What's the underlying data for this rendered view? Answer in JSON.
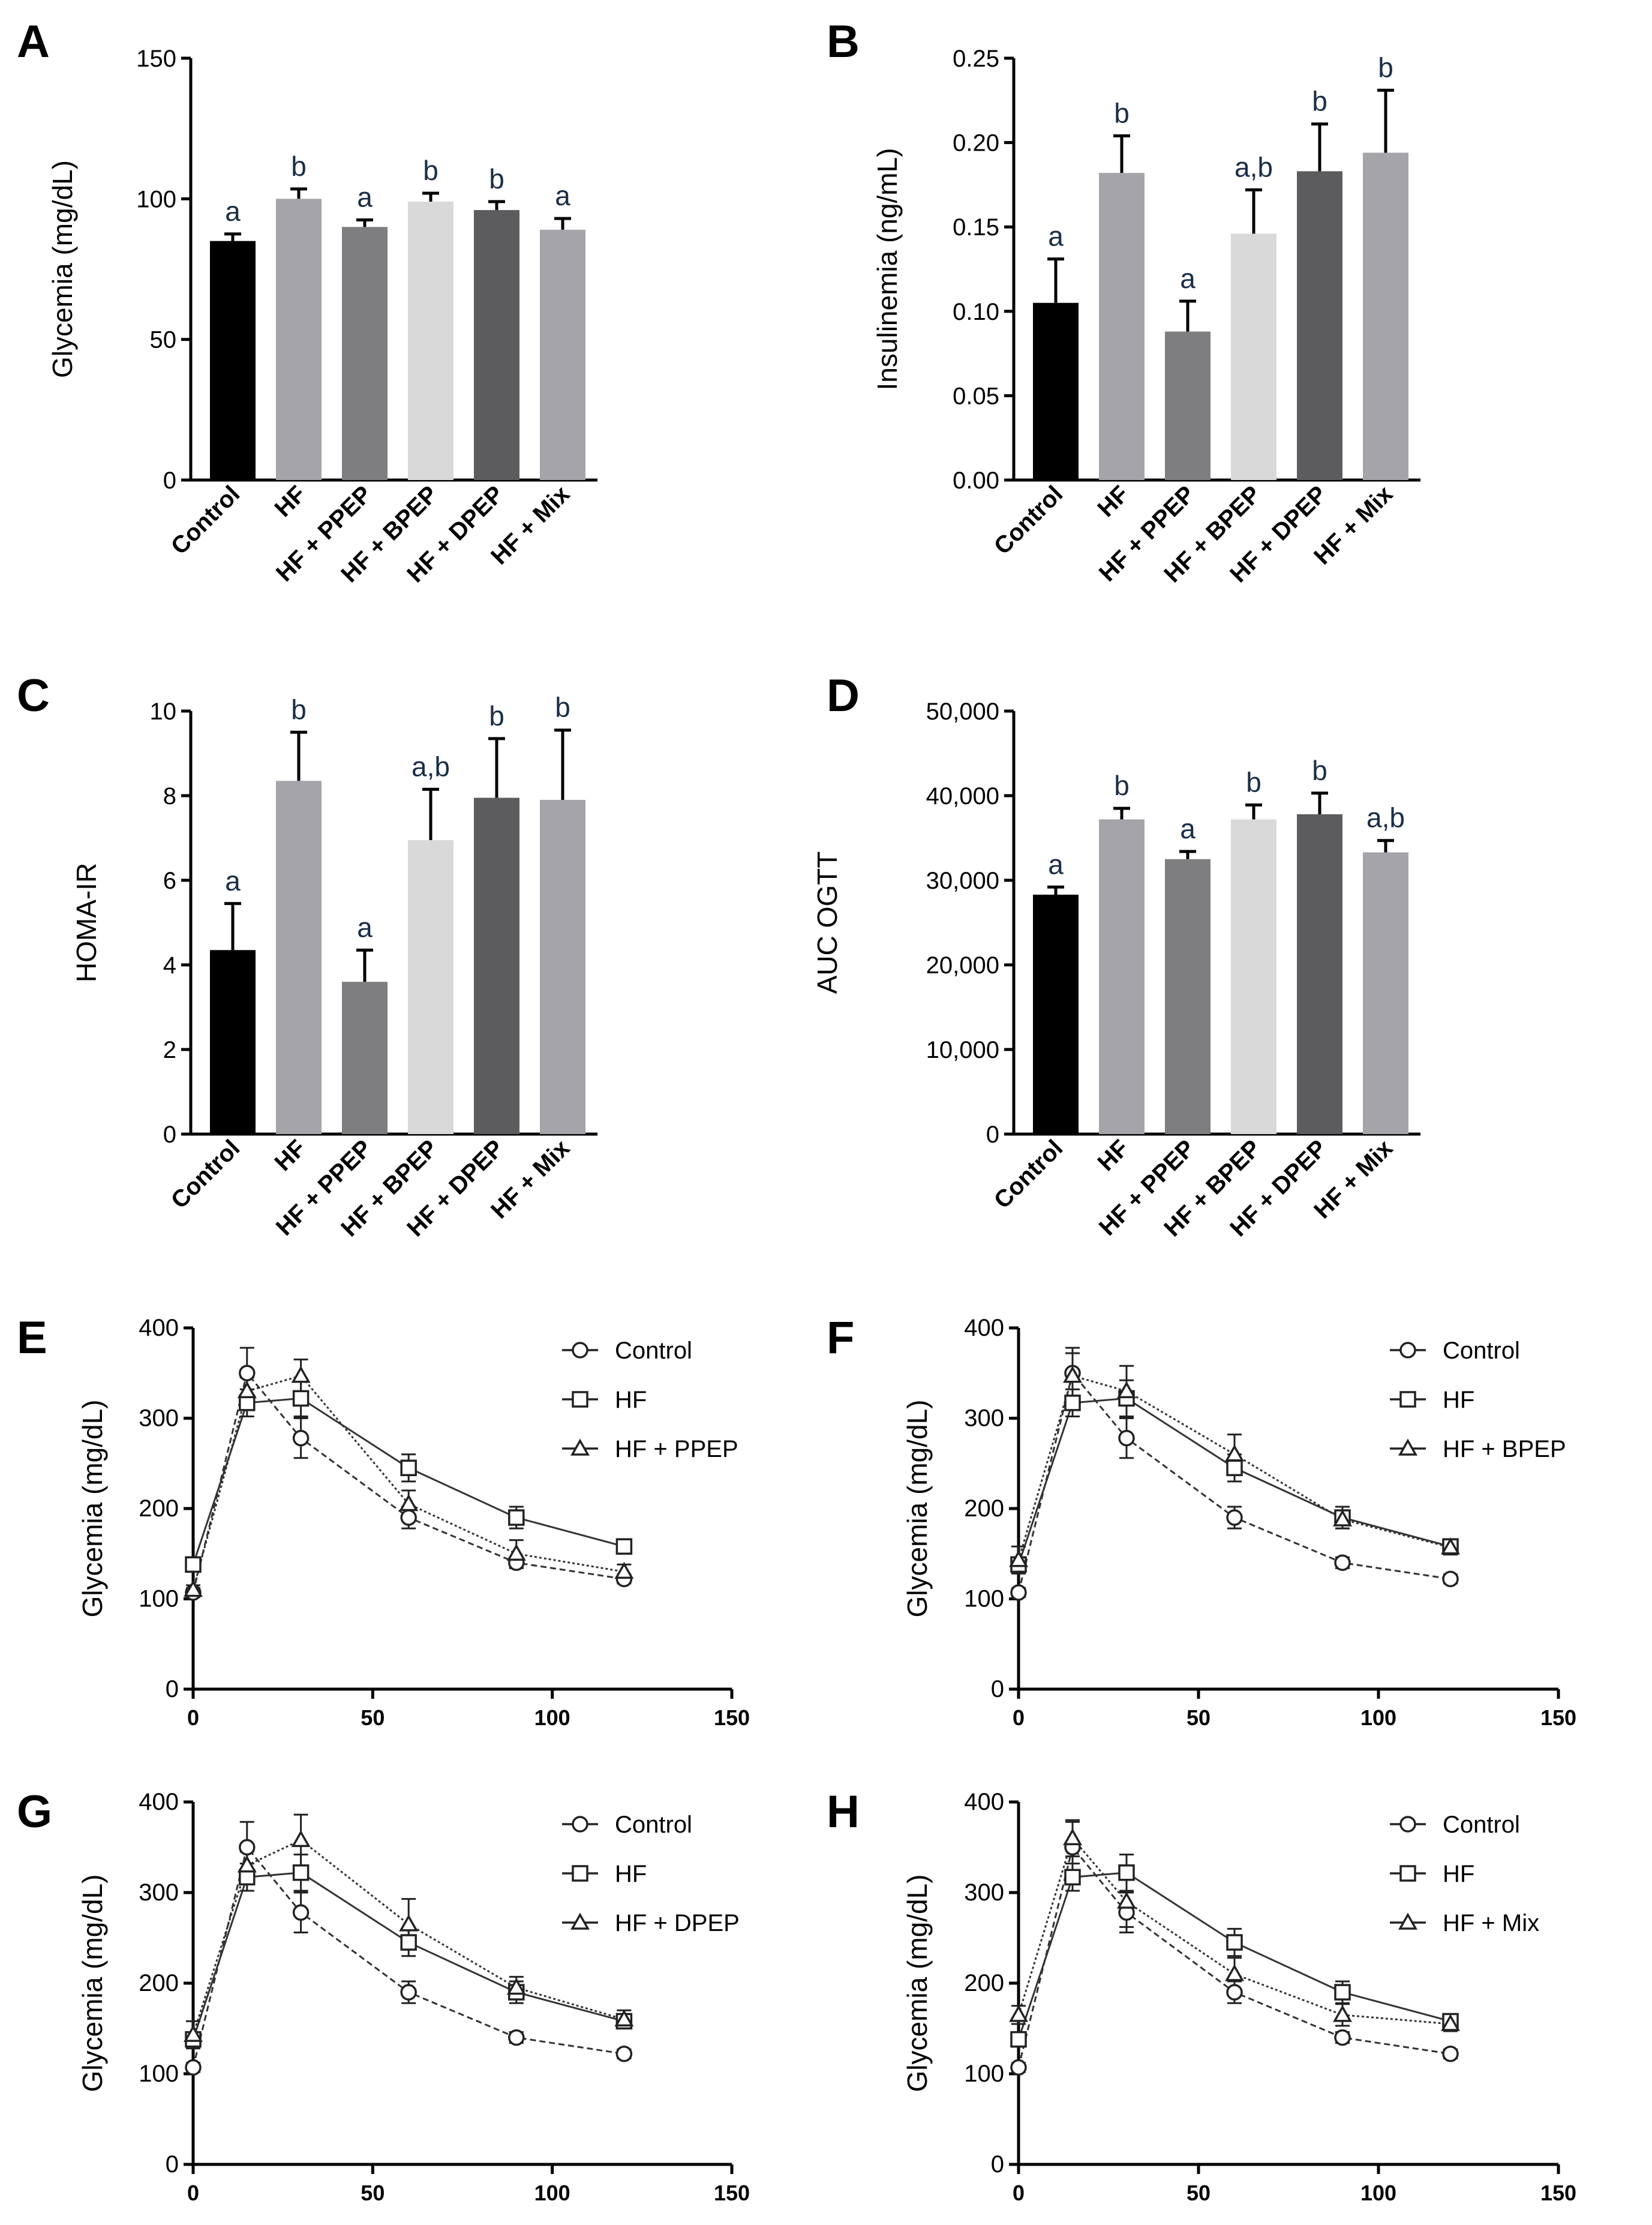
{
  "figure": {
    "panels": [
      "A",
      "B",
      "C",
      "D",
      "E",
      "F",
      "G",
      "H"
    ]
  },
  "chart_data": [
    {
      "id": "A",
      "type": "bar",
      "ylabel": "Glycemia (mg/dL)",
      "ylim": [
        0,
        150
      ],
      "yticks": [
        0,
        50,
        100,
        150
      ],
      "ytick_labels": [
        "0",
        "50",
        "100",
        "150"
      ],
      "categories": [
        "Control",
        "HF",
        "HF + PPEP",
        "HF + BPEP",
        "HF + DPEP",
        "HF + Mix"
      ],
      "values": [
        85,
        100,
        90,
        99,
        96,
        89
      ],
      "errors": [
        2.5,
        3.5,
        2.5,
        3,
        3,
        4
      ],
      "significance": [
        "a",
        "b",
        "a",
        "b",
        "b",
        "a"
      ],
      "colors": [
        "#000000",
        "#a4a4a9",
        "#7e7e80",
        "#d9d9d9",
        "#5c5c5e",
        "#a4a4a9"
      ]
    },
    {
      "id": "B",
      "type": "bar",
      "ylabel": "Insulinemia (ng/mL)",
      "ylim": [
        0,
        0.25
      ],
      "yticks": [
        0,
        0.05,
        0.1,
        0.15,
        0.2,
        0.25
      ],
      "ytick_labels": [
        "0.00",
        "0.05",
        "0.10",
        "0.15",
        "0.20",
        "0.25"
      ],
      "categories": [
        "Control",
        "HF",
        "HF + PPEP",
        "HF + BPEP",
        "HF + DPEP",
        "HF + Mix"
      ],
      "values": [
        0.105,
        0.182,
        0.088,
        0.146,
        0.183,
        0.194
      ],
      "errors": [
        0.026,
        0.022,
        0.018,
        0.026,
        0.028,
        0.037
      ],
      "significance": [
        "a",
        "b",
        "a",
        "a,b",
        "b",
        "b"
      ],
      "colors": [
        "#000000",
        "#a4a4a9",
        "#7e7e80",
        "#d9d9d9",
        "#5c5c5e",
        "#a4a4a9"
      ]
    },
    {
      "id": "C",
      "type": "bar",
      "ylabel": "HOMA-IR",
      "ylim": [
        0,
        10
      ],
      "yticks": [
        0,
        2,
        4,
        6,
        8,
        10
      ],
      "ytick_labels": [
        "0",
        "2",
        "4",
        "6",
        "8",
        "10"
      ],
      "categories": [
        "Control",
        "HF",
        "HF + PPEP",
        "HF + BPEP",
        "HF + DPEP",
        "HF + Mix"
      ],
      "values": [
        4.35,
        8.35,
        3.6,
        6.95,
        7.95,
        7.9
      ],
      "errors": [
        1.1,
        1.15,
        0.75,
        1.2,
        1.4,
        1.65
      ],
      "significance": [
        "a",
        "b",
        "a",
        "a,b",
        "b",
        "b"
      ],
      "colors": [
        "#000000",
        "#a4a4a9",
        "#7e7e80",
        "#d9d9d9",
        "#5c5c5e",
        "#a4a4a9"
      ]
    },
    {
      "id": "D",
      "type": "bar",
      "ylabel": "AUC OGTT",
      "ylim": [
        0,
        50000
      ],
      "yticks": [
        0,
        10000,
        20000,
        30000,
        40000,
        50000
      ],
      "ytick_labels": [
        "0",
        "10,000",
        "20,000",
        "30,000",
        "40,000",
        "50,000"
      ],
      "categories": [
        "Control",
        "HF",
        "HF + PPEP",
        "HF + BPEP",
        "HF + DPEP",
        "HF + Mix"
      ],
      "values": [
        28300,
        37200,
        32500,
        37200,
        37800,
        33300
      ],
      "errors": [
        900,
        1300,
        900,
        1700,
        2500,
        1400
      ],
      "significance": [
        "a",
        "b",
        "a",
        "b",
        "b",
        "a,b"
      ],
      "colors": [
        "#000000",
        "#a4a4a9",
        "#7e7e80",
        "#d9d9d9",
        "#5c5c5e",
        "#a4a4a9"
      ]
    },
    {
      "id": "E",
      "type": "line",
      "ylabel": "Glycemia (mg/dL)",
      "xlim": [
        0,
        150
      ],
      "ylim": [
        0,
        400
      ],
      "xticks": [
        0,
        50,
        100,
        150
      ],
      "yticks": [
        0,
        100,
        200,
        300,
        400
      ],
      "x": [
        0,
        15,
        30,
        60,
        90,
        120
      ],
      "series": [
        {
          "name": "Control",
          "marker": "circle",
          "values": [
            107,
            350,
            278,
            190,
            140,
            122
          ],
          "errors": [
            5,
            28,
            22,
            12,
            6,
            5
          ]
        },
        {
          "name": "HF",
          "marker": "square",
          "values": [
            138,
            317,
            322,
            245,
            190,
            158
          ],
          "errors": [
            8,
            15,
            20,
            15,
            12,
            6
          ]
        },
        {
          "name": "HF + PPEP",
          "marker": "triangle",
          "values": [
            110,
            330,
            347,
            205,
            150,
            130
          ],
          "errors": [
            5,
            15,
            18,
            15,
            15,
            8
          ]
        }
      ]
    },
    {
      "id": "F",
      "type": "line",
      "ylabel": "Glycemia (mg/dL)",
      "xlim": [
        0,
        150
      ],
      "ylim": [
        0,
        400
      ],
      "xticks": [
        0,
        50,
        100,
        150
      ],
      "yticks": [
        0,
        100,
        200,
        300,
        400
      ],
      "x": [
        0,
        15,
        30,
        60,
        90,
        120
      ],
      "series": [
        {
          "name": "Control",
          "marker": "circle",
          "values": [
            107,
            350,
            278,
            190,
            140,
            122
          ],
          "errors": [
            5,
            28,
            22,
            12,
            6,
            5
          ]
        },
        {
          "name": "HF",
          "marker": "square",
          "values": [
            138,
            317,
            322,
            245,
            190,
            158
          ],
          "errors": [
            8,
            15,
            20,
            15,
            12,
            6
          ]
        },
        {
          "name": "HF + BPEP",
          "marker": "triangle",
          "values": [
            143,
            347,
            330,
            260,
            188,
            157
          ],
          "errors": [
            15,
            25,
            28,
            22,
            10,
            8
          ]
        }
      ]
    },
    {
      "id": "G",
      "type": "line",
      "ylabel": "Glycemia (mg/dL)",
      "xlim": [
        0,
        150
      ],
      "ylim": [
        0,
        400
      ],
      "xticks": [
        0,
        50,
        100,
        150
      ],
      "yticks": [
        0,
        100,
        200,
        300,
        400
      ],
      "x": [
        0,
        15,
        30,
        60,
        90,
        120
      ],
      "series": [
        {
          "name": "Control",
          "marker": "circle",
          "values": [
            107,
            350,
            278,
            190,
            140,
            122
          ],
          "errors": [
            5,
            28,
            22,
            12,
            6,
            5
          ]
        },
        {
          "name": "HF",
          "marker": "square",
          "values": [
            138,
            317,
            322,
            245,
            190,
            158
          ],
          "errors": [
            8,
            15,
            20,
            15,
            12,
            6
          ]
        },
        {
          "name": "HF + DPEP",
          "marker": "triangle",
          "values": [
            143,
            330,
            358,
            265,
            195,
            160
          ],
          "errors": [
            15,
            15,
            28,
            28,
            12,
            10
          ]
        }
      ]
    },
    {
      "id": "H",
      "type": "line",
      "ylabel": "Glycemia (mg/dL)",
      "xlim": [
        0,
        150
      ],
      "ylim": [
        0,
        400
      ],
      "xticks": [
        0,
        50,
        100,
        150
      ],
      "yticks": [
        0,
        100,
        200,
        300,
        400
      ],
      "x": [
        0,
        15,
        30,
        60,
        90,
        120
      ],
      "series": [
        {
          "name": "Control",
          "marker": "circle",
          "values": [
            107,
            350,
            278,
            190,
            140,
            122
          ],
          "errors": [
            5,
            28,
            22,
            12,
            6,
            5
          ]
        },
        {
          "name": "HF",
          "marker": "square",
          "values": [
            138,
            317,
            322,
            245,
            190,
            158
          ],
          "errors": [
            8,
            15,
            20,
            15,
            12,
            6
          ]
        },
        {
          "name": "HF + Mix",
          "marker": "triangle",
          "values": [
            165,
            360,
            290,
            210,
            165,
            155
          ],
          "errors": [
            10,
            20,
            28,
            18,
            12,
            8
          ]
        }
      ]
    }
  ]
}
